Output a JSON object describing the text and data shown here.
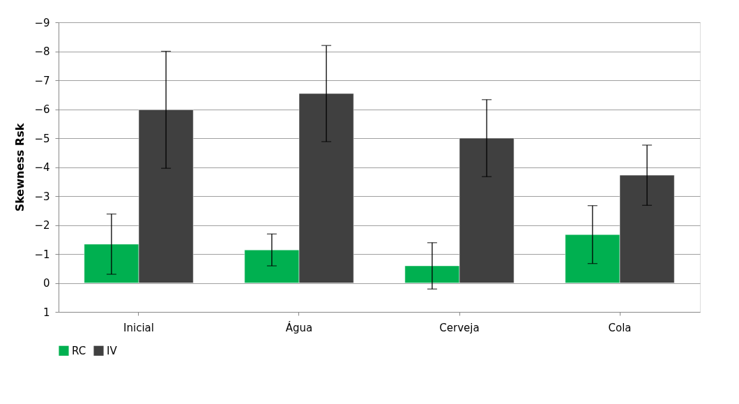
{
  "chart_data": {
    "type": "bar",
    "ylabel": "Skewness  Rsk",
    "categories": [
      "Inicial",
      "Água",
      "Cerveja",
      "Cola"
    ],
    "series": [
      {
        "name": "RC",
        "color": "#00b050",
        "values": [
          -1.34,
          -1.14,
          -0.59,
          -1.67
        ],
        "errors": [
          1.04,
          0.55,
          0.8,
          1.0
        ]
      },
      {
        "name": "IV",
        "color": "#404040",
        "values": [
          -5.98,
          -6.54,
          -5.0,
          -3.72
        ],
        "errors": [
          2.02,
          1.66,
          1.33,
          1.04
        ]
      }
    ],
    "ylim": [
      1,
      -9
    ],
    "yticks": [
      1,
      0,
      -1,
      -2,
      -3,
      -4,
      -5,
      -6,
      -7,
      -8,
      -9
    ],
    "grid": "y",
    "legend": "bottom"
  }
}
